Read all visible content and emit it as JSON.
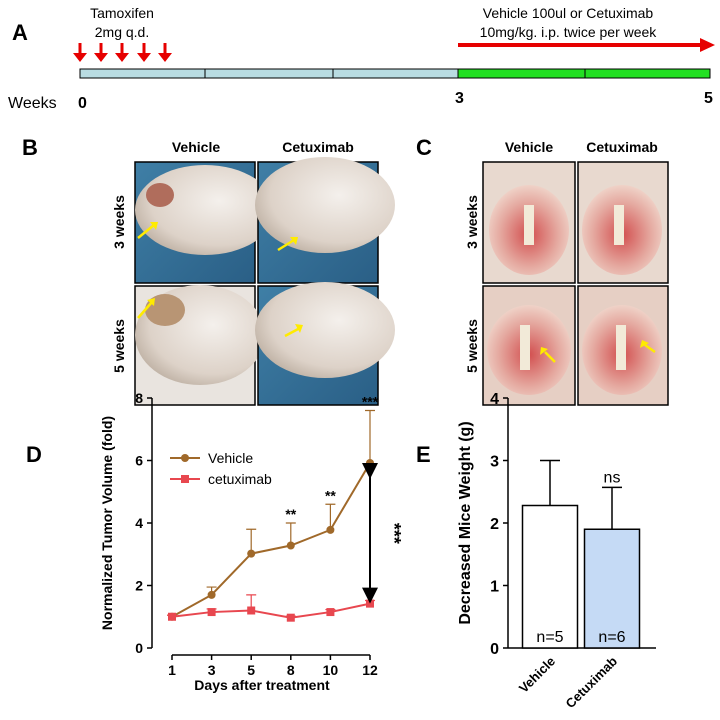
{
  "panel_labels": [
    "A",
    "B",
    "C",
    "D",
    "E"
  ],
  "timeline": {
    "drug1": "Tamoxifen",
    "dose1": "2mg q.d.",
    "drug2": "Vehicle 100ul or Cetuximab",
    "dose2": "10mg/kg. i.p. twice per week",
    "axis_label": "Weeks",
    "week_labels": [
      "0",
      "3",
      "5"
    ]
  },
  "panel_b": {
    "columns": [
      "Vehicle",
      "Cetuximab"
    ],
    "rows": [
      "3 weeks",
      "5 weeks"
    ]
  },
  "panel_c": {
    "columns": [
      "Vehicle",
      "Cetuximab"
    ],
    "rows": [
      "3 weeks",
      "5 weeks"
    ]
  },
  "chart_data": [
    {
      "type": "line",
      "ylabel": "Normalized Tumor Volume (fold)",
      "xlabel": "Days after treatment",
      "categories": [
        "1",
        "3",
        "5",
        "8",
        "10",
        "12"
      ],
      "series": [
        {
          "name": "Vehicle",
          "color": "#a0692a",
          "values": [
            1.0,
            1.7,
            3.02,
            3.28,
            3.78,
            5.92
          ],
          "errors": [
            0.05,
            0.25,
            0.78,
            0.72,
            0.82,
            1.68
          ],
          "significance": [
            null,
            null,
            null,
            "**",
            "**",
            "***"
          ]
        },
        {
          "name": "cetuximab",
          "color": "#e8474f",
          "values": [
            1.0,
            1.15,
            1.2,
            0.97,
            1.15,
            1.42
          ],
          "errors": [
            0.05,
            0.1,
            0.5,
            0.05,
            0.08,
            0.1
          ]
        }
      ],
      "comparison_label": "***",
      "ylim": [
        0,
        8
      ],
      "yticks": [
        0,
        2,
        4,
        6,
        8
      ],
      "legend": "upper-left"
    },
    {
      "type": "bar",
      "ylabel": "Decreased Mice Weight (g)",
      "categories": [
        "Vehicle",
        "Cetuximab"
      ],
      "values": [
        2.28,
        1.9
      ],
      "errors": [
        0.72,
        0.67
      ],
      "colors": [
        "#ffffff",
        "#c5daf5"
      ],
      "bar_labels": [
        "n=5",
        "n=6"
      ],
      "significance": [
        null,
        "ns"
      ],
      "ylim": [
        0,
        4
      ],
      "yticks": [
        0,
        1,
        2,
        3,
        4
      ]
    }
  ]
}
